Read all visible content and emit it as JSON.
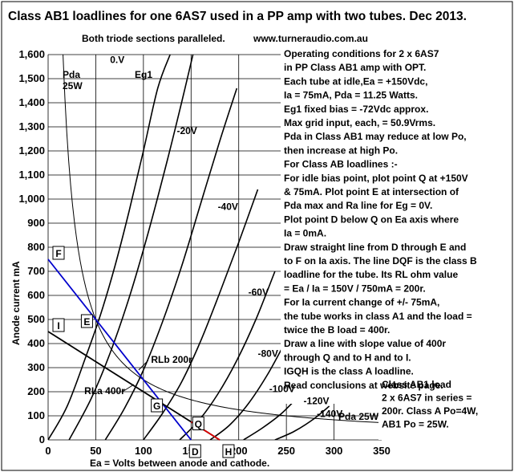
{
  "chart_data": {
    "type": "line",
    "title": "Class AB1 loadlines for one 6AS7 used in a PP amp with two tubes. Dec 2013.",
    "subtitle": "Both triode sections paralleled.",
    "website": "www.turneraudio.com.au",
    "xlabel": "Ea = Volts between  anode and cathode.",
    "ylabel": "Anode current mA",
    "xlim": [
      0,
      350
    ],
    "ylim": [
      0,
      1600
    ],
    "x_ticks": [
      0,
      50,
      100,
      150,
      200,
      250,
      300,
      350
    ],
    "x_tick_labels": [
      "0",
      "50",
      "100",
      "150",
      "200",
      "250",
      "300",
      "350"
    ],
    "y_ticks": [
      0,
      100,
      200,
      300,
      400,
      500,
      600,
      700,
      800,
      900,
      1000,
      1100,
      1200,
      1300,
      1400,
      1500,
      1600
    ],
    "y_tick_labels": [
      "0",
      "100",
      "200",
      "300",
      "400",
      "500",
      "600",
      "700",
      "800",
      "900",
      "1,000",
      "1,100",
      "1,200",
      "1,300",
      "1,400",
      "1,500",
      "1,600"
    ],
    "grid": true,
    "series": [
      {
        "name": "0.V",
        "label_x": 65,
        "label_y": 1565,
        "points": [
          [
            0,
            0
          ],
          [
            20,
            140
          ],
          [
            40,
            350
          ],
          [
            55,
            520
          ],
          [
            70,
            720
          ],
          [
            85,
            950
          ],
          [
            100,
            1200
          ],
          [
            115,
            1460
          ],
          [
            128,
            1600
          ]
        ]
      },
      {
        "name": "-20V",
        "label_x": 135,
        "label_y": 1270,
        "points": [
          [
            22,
            0
          ],
          [
            45,
            170
          ],
          [
            65,
            360
          ],
          [
            85,
            590
          ],
          [
            105,
            860
          ],
          [
            125,
            1160
          ],
          [
            140,
            1400
          ],
          [
            152,
            1600
          ]
        ]
      },
      {
        "name": "-40V",
        "label_x": 178,
        "label_y": 955,
        "points": [
          [
            60,
            0
          ],
          [
            80,
            130
          ],
          [
            100,
            290
          ],
          [
            120,
            490
          ],
          [
            140,
            720
          ],
          [
            160,
            980
          ],
          [
            180,
            1240
          ],
          [
            198,
            1460
          ]
        ]
      },
      {
        "name": "-60V",
        "label_x": 210,
        "label_y": 600,
        "points": [
          [
            100,
            0
          ],
          [
            120,
            110
          ],
          [
            140,
            240
          ],
          [
            160,
            410
          ],
          [
            180,
            610
          ],
          [
            200,
            820
          ],
          [
            220,
            1040
          ]
        ]
      },
      {
        "name": "-80V",
        "label_x": 220,
        "label_y": 345,
        "points": [
          [
            138,
            0
          ],
          [
            158,
            80
          ],
          [
            178,
            190
          ],
          [
            198,
            330
          ],
          [
            218,
            500
          ],
          [
            238,
            700
          ]
        ]
      },
      {
        "name": "-100V",
        "label_x": 232,
        "label_y": 198,
        "points": [
          [
            170,
            0
          ],
          [
            190,
            60
          ],
          [
            210,
            150
          ],
          [
            230,
            270
          ],
          [
            248,
            400
          ]
        ]
      },
      {
        "name": "-120V",
        "label_x": 268,
        "label_y": 148,
        "points": [
          [
            205,
            0
          ],
          [
            225,
            50
          ],
          [
            245,
            110
          ],
          [
            265,
            190
          ],
          [
            280,
            250
          ]
        ]
      },
      {
        "name": "-140V",
        "label_x": 282,
        "label_y": 95,
        "points": [
          [
            238,
            0
          ],
          [
            258,
            35
          ],
          [
            278,
            85
          ],
          [
            295,
            140
          ]
        ]
      }
    ],
    "pda_curve": {
      "name": "Pda 25W",
      "watts": 25,
      "x_from": 15.6,
      "x_to": 350
    },
    "pda_top_label": [
      "Pda",
      "25W"
    ],
    "pda_right_label": "Pda 25W",
    "loadlines": [
      {
        "name": "RLb 200r",
        "color": "#0000cc",
        "points": [
          [
            0,
            750
          ],
          [
            150,
            0
          ]
        ],
        "label_x": 108,
        "label_y": 320
      },
      {
        "name": "RLa 400r",
        "color": "#000000",
        "points": [
          [
            0,
            450
          ],
          [
            180,
            0
          ]
        ],
        "label_x": 38,
        "label_y": 190
      },
      {
        "name": "Class A red",
        "color": "#dd0000",
        "points": [
          [
            150,
            75
          ],
          [
            180,
            0
          ]
        ]
      }
    ],
    "points": [
      {
        "name": "F",
        "x": 0,
        "y": 750
      },
      {
        "name": "I",
        "x": 0,
        "y": 450
      },
      {
        "name": "E",
        "x": 50,
        "y": 500
      },
      {
        "name": "G",
        "x": 120,
        "y": 150
      },
      {
        "name": "Q",
        "x": 150,
        "y": 75
      },
      {
        "name": "D",
        "x": 150,
        "y": 0
      },
      {
        "name": "H",
        "x": 180,
        "y": 0
      }
    ]
  },
  "notes": [
    "Operating conditions for 2 x 6AS7",
    "in PP Class AB1 amp with OPT.",
    "Each tube at idle,Ea = +150Vdc,",
    "Ia  = 75mA, Pda = 11.25 Watts.",
    "Eg1 fixed bias = -72Vdc approx.",
    "Max grid input, each,  = 50.9Vrms.",
    "Pda in Class AB1 may reduce at low Po,",
    "then increase at high Po.",
    "For Class AB loadlines :-",
    "For idle bias point, plot point Q  at +150V",
    "& 75mA.  Plot point E at intersection of",
    "Pda max and Ra line for Eg = 0V.",
    "Plot point D below Q on Ea  axis where",
    "Ia = 0mA.",
    "Draw straight line from D through E and",
    "to F on Ia axis. The line DQF is the class B",
    "loadline for the tube. Its RL ohm value",
    "= Ea / Ia = 150V / 750mA = 200r.",
    "For Ia current change of +/- 75mA,",
    "the tube works in class A1 and the load =",
    "twice the B load = 400r.",
    "Draw a line with slope value of 400r",
    "through Q and to H and to I.",
    "IGQH is the class A loadline.",
    "Read conclusions at website page."
  ],
  "bottom_note": [
    "Class AB1 load",
    "2 x 6AS7 in series =",
    "200r. Class A Po=4W,",
    "AB1 Po = 25W."
  ],
  "eg1_label": "Eg1",
  "colors": {
    "curves": "#000000",
    "grid": "#000000",
    "loadline_b": "#0000cc",
    "loadline_a_red": "#dd0000",
    "background": "#ffffff"
  }
}
